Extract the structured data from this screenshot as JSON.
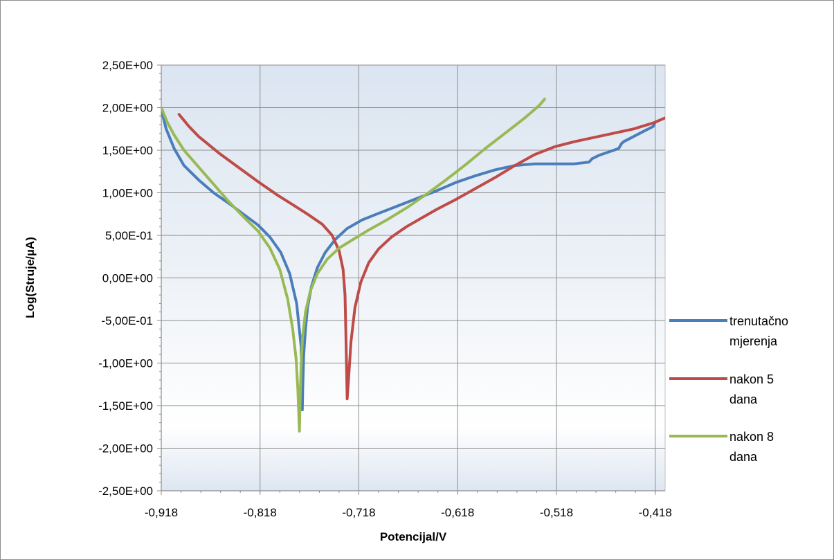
{
  "chart_data": {
    "type": "line",
    "title": "",
    "xlabel": "Potencijal/V",
    "ylabel": "Log(Struje/µA)",
    "xlim": [
      -0.918,
      -0.408
    ],
    "ylim": [
      -2.5,
      2.5
    ],
    "x_ticks": [
      -0.918,
      -0.818,
      -0.718,
      -0.618,
      -0.518,
      -0.418
    ],
    "x_tick_labels": [
      "-0,918",
      "-0,818",
      "-0,718",
      "-0,618",
      "-0,518",
      "-0,418"
    ],
    "y_ticks": [
      2.5,
      2.0,
      1.5,
      1.0,
      0.5,
      0.0,
      -0.5,
      -1.0,
      -1.5,
      -2.0,
      -2.5
    ],
    "y_tick_labels": [
      "2,50E+00",
      "2,00E+00",
      "1,50E+00",
      "1,00E+00",
      "5,00E-01",
      "0,00E+00",
      "-5,00E-01",
      "-1,00E+00",
      "-1,50E+00",
      "-2,00E+00",
      "-2,50E+00"
    ],
    "grid": true,
    "legend_position": "right",
    "series": [
      {
        "name": "trenutačno mjerenja",
        "color": "#4a7ebb",
        "x": [
          -0.918,
          -0.913,
          -0.905,
          -0.895,
          -0.88,
          -0.865,
          -0.85,
          -0.835,
          -0.82,
          -0.808,
          -0.797,
          -0.788,
          -0.781,
          -0.7765,
          -0.7758,
          -0.7755,
          -0.7752,
          -0.7748,
          -0.7738,
          -0.772,
          -0.77,
          -0.766,
          -0.76,
          -0.752,
          -0.742,
          -0.73,
          -0.715,
          -0.7,
          -0.68,
          -0.66,
          -0.64,
          -0.62,
          -0.6,
          -0.58,
          -0.56,
          -0.54,
          -0.52,
          -0.5,
          -0.485,
          -0.482,
          -0.475,
          -0.465,
          -0.455,
          -0.452,
          -0.45,
          -0.44,
          -0.43,
          -0.42,
          -0.418
        ],
        "y": [
          1.98,
          1.75,
          1.52,
          1.32,
          1.15,
          1.0,
          0.88,
          0.75,
          0.62,
          0.48,
          0.3,
          0.05,
          -0.3,
          -0.8,
          -1.1,
          -1.38,
          -1.55,
          -1.3,
          -0.9,
          -0.6,
          -0.35,
          -0.1,
          0.12,
          0.3,
          0.45,
          0.58,
          0.68,
          0.75,
          0.84,
          0.93,
          1.02,
          1.12,
          1.2,
          1.27,
          1.32,
          1.34,
          1.34,
          1.34,
          1.36,
          1.4,
          1.44,
          1.48,
          1.52,
          1.58,
          1.6,
          1.66,
          1.72,
          1.78,
          1.83
        ]
      },
      {
        "name": "nakon 5 dana",
        "color": "#be4b48",
        "x": [
          -0.9,
          -0.89,
          -0.88,
          -0.86,
          -0.84,
          -0.82,
          -0.8,
          -0.785,
          -0.77,
          -0.755,
          -0.745,
          -0.738,
          -0.734,
          -0.732,
          -0.7312,
          -0.7305,
          -0.7298,
          -0.7285,
          -0.726,
          -0.722,
          -0.716,
          -0.708,
          -0.698,
          -0.685,
          -0.67,
          -0.655,
          -0.64,
          -0.62,
          -0.6,
          -0.58,
          -0.56,
          -0.54,
          -0.52,
          -0.5,
          -0.48,
          -0.46,
          -0.44,
          -0.42,
          -0.408
        ],
        "y": [
          1.92,
          1.78,
          1.66,
          1.47,
          1.3,
          1.13,
          0.97,
          0.86,
          0.75,
          0.63,
          0.5,
          0.32,
          0.1,
          -0.2,
          -0.6,
          -1.0,
          -1.42,
          -1.2,
          -0.75,
          -0.35,
          -0.05,
          0.18,
          0.34,
          0.48,
          0.6,
          0.7,
          0.8,
          0.92,
          1.05,
          1.18,
          1.32,
          1.45,
          1.54,
          1.6,
          1.65,
          1.7,
          1.75,
          1.82,
          1.88
        ]
      },
      {
        "name": "nakon 8 dana",
        "color": "#98b954",
        "x": [
          -0.918,
          -0.912,
          -0.905,
          -0.895,
          -0.88,
          -0.865,
          -0.85,
          -0.835,
          -0.82,
          -0.808,
          -0.798,
          -0.79,
          -0.785,
          -0.7815,
          -0.7798,
          -0.7788,
          -0.7782,
          -0.7776,
          -0.7765,
          -0.775,
          -0.772,
          -0.767,
          -0.76,
          -0.75,
          -0.738,
          -0.724,
          -0.71,
          -0.69,
          -0.67,
          -0.65,
          -0.63,
          -0.61,
          -0.59,
          -0.57,
          -0.55,
          -0.535,
          -0.53
        ],
        "y": [
          2.0,
          1.83,
          1.68,
          1.5,
          1.3,
          1.1,
          0.9,
          0.72,
          0.55,
          0.35,
          0.1,
          -0.25,
          -0.6,
          -0.95,
          -1.3,
          -1.6,
          -1.8,
          -1.5,
          -1.05,
          -0.7,
          -0.4,
          -0.15,
          0.05,
          0.22,
          0.35,
          0.45,
          0.55,
          0.68,
          0.82,
          0.98,
          1.15,
          1.33,
          1.52,
          1.7,
          1.88,
          2.03,
          2.1
        ]
      }
    ]
  }
}
